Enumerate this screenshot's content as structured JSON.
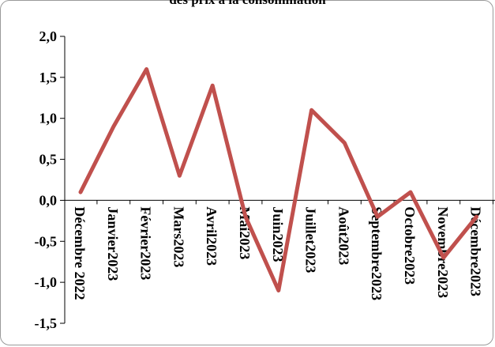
{
  "chart_data": {
    "type": "line",
    "title": "des prix à la consommation",
    "categories": [
      "Décembre 2022",
      "Janvier2023",
      "Février2023",
      "Mars2023",
      "Avril2023",
      "Mai2023",
      "Juin2023",
      "Juillet2023",
      "Août2023",
      "Septembre2023",
      "Octobre2023",
      "Novembre2023",
      "Décembre2023"
    ],
    "series": [
      {
        "values": [
          0.1,
          0.9,
          1.6,
          0.3,
          1.4,
          -0.2,
          -1.1,
          1.1,
          0.7,
          -0.2,
          0.1,
          -0.7,
          -0.2
        ]
      }
    ],
    "ylim": [
      -1.5,
      2.0
    ],
    "yticks": [
      "2,0",
      "1,5",
      "1,0",
      "0,5",
      "0,0",
      "-0,5",
      "-1,0",
      "-1,5"
    ],
    "ytick_values": [
      2.0,
      1.5,
      1.0,
      0.5,
      0.0,
      -0.5,
      -1.0,
      -1.5
    ],
    "grid": false,
    "legend": "none",
    "line_color": "#c0504d",
    "axis_color": "#000000"
  }
}
